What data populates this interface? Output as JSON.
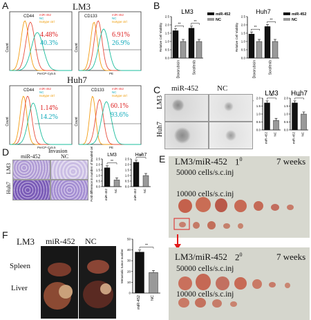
{
  "panels": {
    "A": {
      "label": "A",
      "lm3_title": "LM3",
      "huh7_title": "Huh7",
      "legend": [
        "miR-452",
        "NC",
        "Isotype ctrl"
      ],
      "charts": [
        {
          "marker": "CD44",
          "xlab": "PerCP-Cy5.5",
          "ylab": "Count",
          "red_pct": "4.48%",
          "blue_pct": "40.3%"
        },
        {
          "marker": "CD133",
          "xlab": "PE",
          "ylab": "Count",
          "red_pct": "6.91%",
          "blue_pct": "26.9%"
        },
        {
          "marker": "CD44",
          "xlab": "PerCP-Cy5.5",
          "ylab": "Count",
          "red_pct": "1.14%",
          "blue_pct": "14.2%"
        },
        {
          "marker": "CD133",
          "xlab": "PE",
          "ylab": "Count",
          "red_pct": "60.1%",
          "blue_pct": "93.6%"
        }
      ]
    },
    "B": {
      "label": "B",
      "ylabel": "Relative Cell Viability",
      "legend": [
        "miR-452",
        "NC"
      ],
      "charts": [
        {
          "title": "LM3",
          "categories": [
            "Doxorubicin",
            "Sorafenib"
          ],
          "mir": [
            1.65,
            1.8
          ],
          "nc": [
            1.0,
            1.0
          ],
          "sig": "**"
        },
        {
          "title": "Huh7",
          "categories": [
            "Doxorubicin",
            "Sorafenib"
          ],
          "mir": [
            1.45,
            1.9
          ],
          "nc": [
            1.0,
            1.0
          ],
          "sig": "**"
        }
      ],
      "yticks": [
        "0.0",
        "0.5",
        "1.0",
        "1.5",
        "2.0",
        "2.5"
      ]
    },
    "C": {
      "label": "C",
      "col_mir": "miR-452",
      "col_nc": "NC",
      "row_lm3": "LM3",
      "row_huh7": "Huh7",
      "chart_title_lm3": "LM3",
      "chart_title_huh7": "Huh7",
      "ylabel": "Fold difference of tumor spheres",
      "categories": [
        "miR-452",
        "NC"
      ],
      "yticks": [
        "0.0",
        "0.5",
        "1.0",
        "1.5",
        "2.0"
      ],
      "sig": "**"
    },
    "D": {
      "label": "D",
      "title": "Invasion",
      "col_mir": "miR-452",
      "col_nc": "NC",
      "row_lm3": "LM3",
      "row_huh7": "Huh7",
      "chart_title_lm3": "LM3",
      "chart_title_huh7": "Huh7",
      "ylabel": "Fold difference in number of invaded cells",
      "categories": [
        "miR-452",
        "NC"
      ],
      "yticks": [
        "0.0",
        "0.5",
        "1.0",
        "1.5",
        "2.0",
        "2.5"
      ],
      "sig": "**"
    },
    "E": {
      "label": "E",
      "top_title": "LM3/miR-452",
      "top_gen": "1",
      "top_gen_sup": "0",
      "bottom_title": "LM3/miR-452",
      "bottom_gen": "2",
      "bottom_gen_sup": "0",
      "weeks": "7 weeks",
      "row1": "50000 cells/s.c.inj",
      "row2": "10000 cells/s.c.inj"
    },
    "F": {
      "label": "F",
      "cell": "LM3",
      "col_mir": "miR-452",
      "col_nc": "NC",
      "row_spleen": "Spleen",
      "row_liver": "Liver",
      "ylabel": "Metastatic tumor number",
      "categories": [
        "miR-452",
        "NC"
      ],
      "yticks": [
        "0",
        "10",
        "20",
        "30",
        "40",
        "50"
      ],
      "sig": "**"
    }
  },
  "chart_data": [
    {
      "type": "bar",
      "title": "LM3",
      "categories": [
        "Doxorubicin",
        "Sorafenib"
      ],
      "ylabel": "Relative Cell Viability",
      "ylim": [
        0,
        2.5
      ],
      "series": [
        {
          "name": "miR-452",
          "values": [
            1.65,
            1.8
          ]
        },
        {
          "name": "NC",
          "values": [
            1.0,
            1.0
          ]
        }
      ]
    },
    {
      "type": "bar",
      "title": "Huh7",
      "categories": [
        "Doxorubicin",
        "Sorafenib"
      ],
      "ylabel": "Relative Cell Viability",
      "ylim": [
        0,
        2.5
      ],
      "series": [
        {
          "name": "miR-452",
          "values": [
            1.45,
            1.9
          ]
        },
        {
          "name": "NC",
          "values": [
            1.0,
            1.0
          ]
        }
      ]
    },
    {
      "type": "bar",
      "title": "LM3",
      "categories": [
        "miR-452",
        "NC"
      ],
      "ylabel": "Fold difference of tumor spheres",
      "ylim": [
        0,
        2.0
      ],
      "values": [
        1.7,
        0.6
      ]
    },
    {
      "type": "bar",
      "title": "Huh7",
      "categories": [
        "miR-452",
        "NC"
      ],
      "ylabel": "Fold difference of tumor spheres",
      "ylim": [
        0,
        2.0
      ],
      "values": [
        1.7,
        1.0
      ]
    },
    {
      "type": "bar",
      "title": "LM3",
      "categories": [
        "miR-452",
        "NC"
      ],
      "ylabel": "Fold difference in number of invaded cells",
      "ylim": [
        0,
        2.5
      ],
      "values": [
        1.7,
        0.6
      ]
    },
    {
      "type": "bar",
      "title": "Huh7",
      "categories": [
        "miR-452",
        "NC"
      ],
      "ylabel": "Fold difference in number of invaded cells",
      "ylim": [
        0,
        2.5
      ],
      "values": [
        2.2,
        1.0
      ]
    },
    {
      "type": "bar",
      "title": "",
      "categories": [
        "miR-452",
        "NC"
      ],
      "ylabel": "Metastatic tumor number",
      "ylim": [
        0,
        50
      ],
      "values": [
        38,
        19
      ]
    }
  ]
}
